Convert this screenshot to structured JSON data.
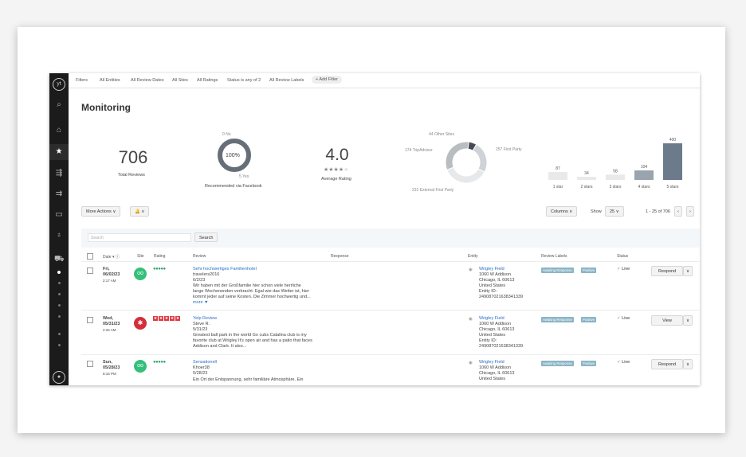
{
  "filters": [
    "Filters",
    "All Entities",
    "All Review Dates",
    "All Sites",
    "All Ratings",
    "Status is any of 2",
    "All Review Labels"
  ],
  "add_filter": "+ Add Filter",
  "page_title": "Monitoring",
  "total_reviews": {
    "value": "706",
    "label": "Total Reviews"
  },
  "recommended": {
    "top": "0 No",
    "center": "100%",
    "bottom": "5 Yes",
    "label": "Recommended via Facebook",
    "percent": 100
  },
  "avg_rating": {
    "value": "4.0",
    "label": "Average Rating",
    "stars": 4
  },
  "sources": {
    "top": "44 Other Sites",
    "left": "174 TripAdvisor",
    "right": "257 First Party",
    "bottom": "231 External First Party",
    "chart_data": {
      "type": "pie",
      "series": [
        {
          "name": "Other Sites",
          "value": 44
        },
        {
          "name": "TripAdvisor",
          "value": 174
        },
        {
          "name": "First Party",
          "value": 257
        },
        {
          "name": "External First Party",
          "value": 231
        }
      ]
    }
  },
  "distribution": {
    "chart_data": {
      "type": "bar",
      "categories": [
        "1 star",
        "2 stars",
        "3 stars",
        "4 stars",
        "5 stars"
      ],
      "values": [
        87,
        34,
        58,
        104,
        400
      ]
    }
  },
  "actions": {
    "more_actions": "More Actions ∨",
    "bell": "🔔 ∨",
    "columns": "Columns ∨",
    "show_label": "Show",
    "show_value": "25 ∨",
    "pagination": "1 - 25 of 706"
  },
  "search": {
    "placeholder": "Search",
    "button": "Search"
  },
  "table_headers": {
    "date": "Date ▾ ⓘ",
    "site": "Site",
    "rating": "Rating",
    "review": "Review",
    "response": "Response",
    "entity": "Entity",
    "labels": "Review Labels",
    "status": "Status"
  },
  "rows": [
    {
      "day": "Fri,",
      "date": "06/02/23",
      "time": "2:17 AM",
      "site": "tripadvisor-icon",
      "title": "Sehr hochwertiges Familienhotel",
      "author": "travelers2016",
      "rdate": "6/2/23",
      "text1": "Wir haben mit der Großfamilie hier schon viele herrliche",
      "text2": "lange Wochenenden verbracht. Egal wie das Wetter ist, hier",
      "text3": "kommt jeder auf seine Kosten. Die Zimmer hochwertig und...",
      "more": "more ▼",
      "entity": "Wrigley Field",
      "addr1": "1060 W Addison",
      "addr2": "Chicago, IL 60613",
      "addr3": "United States",
      "eid": "Entity ID:",
      "eidv": "249087021638341339",
      "label1": "Awaiting Response",
      "label2": "Positive",
      "status": "Live",
      "action": "Respond"
    },
    {
      "day": "Wed,",
      "date": "05/31/23",
      "time": "2:34 AM",
      "site": "yelp-icon",
      "title": "Yelp Review",
      "author": "Steve R.",
      "rdate": "5/31/23",
      "text1": "Greatest ball park in the world Go cubs Catalina club is my",
      "text2": "favorite club at Wrigley It's open air and has a patio that faces",
      "text3": "Addison and Clark. It also...",
      "more": "",
      "entity": "Wrigley Field",
      "addr1": "1060 W Addison",
      "addr2": "Chicago, IL 60613",
      "addr3": "United States",
      "eid": "Entity ID:",
      "eidv": "249087021638341339",
      "label1": "Awaiting Response",
      "label2": "Positive",
      "status": "Live",
      "action": "View"
    },
    {
      "day": "Sun,",
      "date": "05/28/23",
      "time": "8:15 PM",
      "site": "tripadvisor-icon",
      "title": "Sensationell",
      "author": "Khoer38",
      "rdate": "5/28/23",
      "text1": "Ein Ort der Entspannung, sehr familiäre Atmosphäre. Ein",
      "text2": "",
      "text3": "",
      "more": "",
      "entity": "Wrigley Field",
      "addr1": "1060 W Addison",
      "addr2": "Chicago, IL 60613",
      "addr3": "United States",
      "eid": "",
      "eidv": "",
      "label1": "Awaiting Response",
      "label2": "Positive",
      "status": "Live",
      "action": "Respond"
    }
  ],
  "colors": {
    "accent": "#2a6fc6",
    "dark_bar": "#6b7b8c",
    "sidebar": "#1b1b1b"
  }
}
